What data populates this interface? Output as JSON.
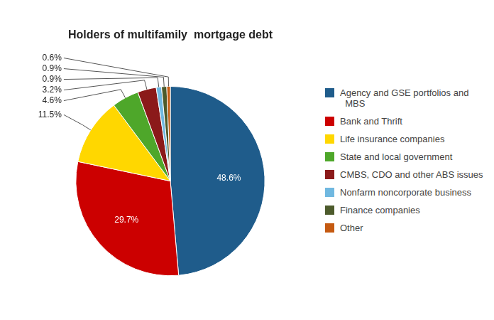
{
  "chart_data": {
    "type": "pie",
    "title": "Holders of multifamily  mortgage debt",
    "categories": [
      "Agency and GSE portfolios and\n  MBS",
      "Bank and Thrift",
      "Life insurance companies",
      "State and local government",
      "CMBS, CDO and other ABS issues",
      "Nonfarm noncorporate business",
      "Finance companies",
      "Other"
    ],
    "values": [
      48.6,
      29.7,
      11.5,
      4.6,
      3.2,
      0.9,
      0.9,
      0.6
    ],
    "colors": [
      "#1F5C8B",
      "#CC0000",
      "#FFD700",
      "#4EA72A",
      "#8B1A1A",
      "#70B8E0",
      "#4D5B2C",
      "#C55A11"
    ],
    "data_labels": true,
    "value_labels": [
      "48.6%",
      "29.7%",
      "11.5%",
      "4.6%",
      "3.2%",
      "0.9%",
      "0.9%",
      "0.6%"
    ],
    "legend": "right"
  }
}
